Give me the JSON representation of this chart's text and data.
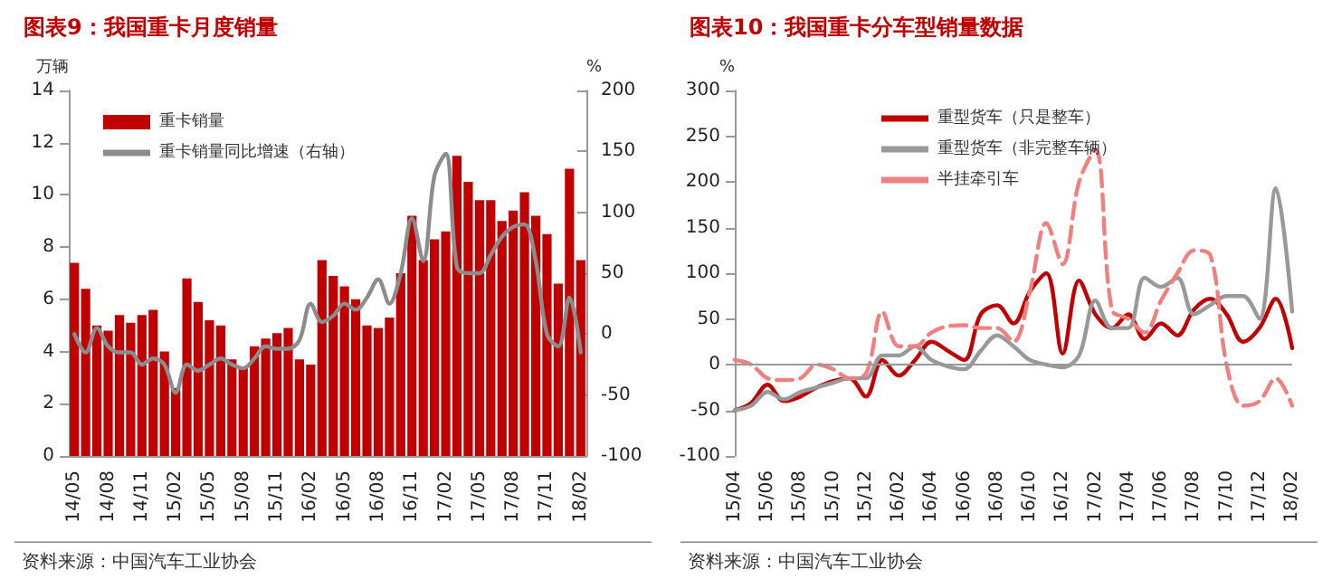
{
  "chart_data": [
    {
      "type": "bar",
      "title": "图表9：我国重卡月度销量",
      "ylabel": "万辆",
      "y2label": "%",
      "categories": [
        "14/05",
        null,
        null,
        "14/08",
        null,
        null,
        "14/11",
        null,
        null,
        "15/02",
        null,
        null,
        "15/05",
        null,
        null,
        "15/08",
        null,
        null,
        "15/11",
        null,
        null,
        "16/02",
        null,
        null,
        "16/05",
        null,
        null,
        "16/08",
        null,
        null,
        "16/11",
        null,
        null,
        "17/02",
        null,
        null,
        "17/05",
        null,
        null,
        "17/08",
        null,
        null,
        "17/11",
        null,
        null,
        "18/02"
      ],
      "series": [
        {
          "name": "重卡销量",
          "type": "bar",
          "color": "#c00000",
          "values": [
            7.4,
            6.4,
            5.0,
            4.8,
            5.4,
            5.1,
            5.4,
            5.6,
            4.0,
            2.6,
            6.8,
            5.9,
            5.2,
            5.0,
            3.7,
            3.4,
            4.2,
            4.5,
            4.7,
            4.9,
            3.7,
            3.5,
            7.5,
            6.9,
            6.5,
            6.0,
            5.0,
            4.9,
            5.3,
            7.0,
            9.2,
            7.5,
            8.3,
            8.6,
            11.5,
            10.5,
            9.8,
            9.8,
            9.0,
            9.4,
            10.1,
            9.2,
            8.5,
            6.6,
            11.0,
            7.5
          ]
        },
        {
          "name": "重卡销量同比增速（右轴）",
          "type": "line",
          "axis": "y2",
          "color": "#8c8c8c",
          "line_style": "solid",
          "values": [
            0,
            -15,
            5,
            -10,
            -15,
            -15,
            -25,
            -20,
            -25,
            -48,
            -25,
            -30,
            -25,
            -20,
            -25,
            -28,
            -20,
            -10,
            -12,
            -12,
            -5,
            25,
            10,
            15,
            25,
            20,
            30,
            45,
            25,
            50,
            95,
            60,
            130,
            148,
            55,
            50,
            50,
            65,
            80,
            88,
            90,
            60,
            0,
            -10,
            30,
            -15
          ]
        }
      ],
      "ylim": [
        0,
        14
      ],
      "yticks": [
        0,
        2,
        4,
        6,
        8,
        10,
        12,
        14
      ],
      "y2lim": [
        -100,
        200
      ],
      "y2ticks": [
        -100,
        -50,
        0,
        50,
        100,
        150,
        200
      ],
      "legend": "top left",
      "grid": false,
      "marker": "none",
      "annotations": [
        "资料来源：中国汽车工业协会"
      ]
    },
    {
      "type": "line",
      "title": "图表10：我国重卡分车型销量数据",
      "ylabel": "%",
      "categories": [
        "15/04",
        null,
        "15/06",
        null,
        "15/08",
        null,
        "15/10",
        null,
        "15/12",
        null,
        "16/02",
        null,
        "16/04",
        null,
        "16/06",
        null,
        "16/08",
        null,
        "16/10",
        null,
        "16/12",
        null,
        "17/02",
        null,
        "17/04",
        null,
        "17/06",
        null,
        "17/08",
        null,
        "17/10",
        null,
        "17/12",
        null,
        "18/02"
      ],
      "series": [
        {
          "name": "重型货车（只是整车）",
          "color": "#c00000",
          "line_style": "solid",
          "values": [
            -50,
            -42,
            -22,
            -40,
            -35,
            -25,
            -18,
            -15,
            -35,
            5,
            -12,
            5,
            25,
            15,
            5,
            55,
            65,
            45,
            80,
            100,
            12,
            92,
            55,
            40,
            55,
            28,
            45,
            32,
            60,
            72,
            55,
            25,
            40,
            72,
            18
          ]
        },
        {
          "name": "重型货车（非完整车辆）",
          "color": "#999999",
          "line_style": "solid",
          "values": [
            -50,
            -45,
            -30,
            -38,
            -30,
            -25,
            -20,
            -15,
            -15,
            10,
            10,
            20,
            5,
            -2,
            -5,
            15,
            32,
            20,
            5,
            0,
            -3,
            10,
            70,
            40,
            40,
            95,
            85,
            95,
            55,
            65,
            75,
            75,
            50,
            193,
            58
          ]
        },
        {
          "name": "半挂牵引车",
          "color": "#f08080",
          "line_style": "dashed",
          "values": [
            5,
            0,
            -15,
            -17,
            -15,
            0,
            -5,
            -15,
            -10,
            58,
            20,
            20,
            35,
            42,
            43,
            40,
            40,
            25,
            80,
            155,
            110,
            200,
            235,
            60,
            50,
            35,
            70,
            100,
            125,
            120,
            0,
            -45,
            -40,
            -15,
            -45
          ]
        }
      ],
      "ylim": [
        -100,
        300
      ],
      "yticks": [
        -100,
        -50,
        0,
        50,
        100,
        150,
        200,
        250,
        300
      ],
      "legend": "top",
      "grid": false,
      "marker": "none",
      "ref_lines": [
        {
          "axis": "y",
          "value": 0,
          "color": "#999999"
        }
      ],
      "annotations": [
        "资料来源：中国汽车工业协会"
      ]
    }
  ]
}
